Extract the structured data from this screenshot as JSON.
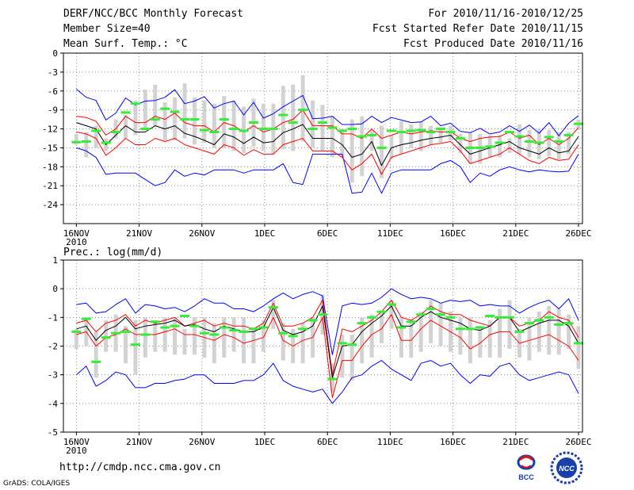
{
  "header": {
    "title": "DERF/NCC/BCC Monthly Forecast",
    "member_size": "Member Size=40",
    "variable": "Mean Surf. Temp.: °C",
    "period": "For 2010/11/16-2010/12/25",
    "start_date": "Fcst Started Refer Date 2010/11/15",
    "produced_date": "Fcst Produced Date 2010/11/16"
  },
  "footer": {
    "url": "http://cmdp.ncc.cma.gov.cn",
    "credit": "GrADS: COLA/IGES",
    "logo_bcc": "BCC",
    "logo_ncc": "NCC"
  },
  "colors": {
    "envelope": "#0000ff",
    "spread": "#ff0000",
    "mean": "#000000",
    "box": "#d2d2d2",
    "median": "#33ee33",
    "grid": "#888888"
  },
  "chart_data": [
    {
      "type": "box",
      "title": "Mean Surf. Temp.: °C",
      "x_tick_labels": [
        "16NOV",
        "21NOV",
        "26NOV",
        "1DEC",
        "6DEC",
        "11DEC",
        "16DEC",
        "21DEC",
        "26DEC"
      ],
      "x_year_label": "2010",
      "ylim": [
        -27,
        0
      ],
      "yticks": [
        0,
        -3,
        -6,
        -9,
        -12,
        -15,
        -18,
        -21,
        -24
      ],
      "series": [
        {
          "name": "max",
          "values": [
            -5.7,
            -7.0,
            -7.5,
            -10.6,
            -9.5,
            -7.1,
            -8.2,
            -7.6,
            -7.5,
            -7.0,
            -5.8,
            -8.0,
            -7.6,
            -6.9,
            -8.7,
            -8.0,
            -7.6,
            -9.8,
            -7.8,
            -10.3,
            -9.6,
            -8.5,
            -7.6,
            -6.7,
            -10.4,
            -10.3,
            -10.0,
            -11.3,
            -11.3,
            -11.2,
            -10.0,
            -11.0,
            -10.2,
            -10.6,
            -11.0,
            -10.9,
            -10.0,
            -11.5,
            -11.1,
            -12.4,
            -12.6,
            -11.9,
            -12.8,
            -12.5,
            -11.5,
            -12.4,
            -11.4,
            -12.7,
            -11.0,
            -13.1,
            -11.1,
            -9.9
          ]
        },
        {
          "name": "upper",
          "values": [
            -10.0,
            -10.2,
            -10.8,
            -13.0,
            -12.0,
            -10.0,
            -11.0,
            -11.0,
            -10.0,
            -10.5,
            -9.5,
            -11.0,
            -11.5,
            -11.5,
            -12.5,
            -11.0,
            -11.5,
            -12.5,
            -11.5,
            -12.5,
            -12.0,
            -11.0,
            -10.5,
            -9.0,
            -11.5,
            -11.5,
            -11.5,
            -12.8,
            -12.8,
            -13.5,
            -12.0,
            -13.5,
            -13.0,
            -12.5,
            -12.8,
            -12.5,
            -12.3,
            -12.5,
            -12.4,
            -13.5,
            -14.0,
            -13.5,
            -13.3,
            -13.2,
            -12.5,
            -13.5,
            -13.0,
            -14.5,
            -13.5,
            -14.5,
            -13.5,
            -11.8
          ]
        },
        {
          "name": "mean",
          "values": [
            -11.0,
            -11.5,
            -12.0,
            -14.5,
            -13.0,
            -11.5,
            -12.5,
            -12.5,
            -11.5,
            -12.0,
            -11.5,
            -12.7,
            -13.2,
            -13.8,
            -14.5,
            -12.8,
            -13.3,
            -14.3,
            -13.3,
            -14.2,
            -14.0,
            -12.6,
            -12.0,
            -11.3,
            -13.5,
            -13.5,
            -13.5,
            -14.5,
            -16.5,
            -16.0,
            -14.0,
            -17.8,
            -15.0,
            -14.5,
            -14.2,
            -13.8,
            -13.5,
            -13.3,
            -13.0,
            -14.5,
            -16.0,
            -15.5,
            -15.0,
            -14.5,
            -14.0,
            -15.0,
            -15.5,
            -16.0,
            -15.0,
            -15.8,
            -15.5,
            -13.2
          ]
        },
        {
          "name": "lower",
          "values": [
            -12.5,
            -12.8,
            -13.5,
            -16.2,
            -15.0,
            -13.5,
            -14.5,
            -14.5,
            -13.5,
            -14.0,
            -13.5,
            -14.5,
            -15.0,
            -15.5,
            -16.0,
            -14.5,
            -15.0,
            -16.2,
            -15.3,
            -16.0,
            -16.0,
            -14.5,
            -14.0,
            -13.5,
            -15.5,
            -15.5,
            -15.5,
            -16.5,
            -18.5,
            -17.5,
            -16.0,
            -19.2,
            -16.5,
            -16.0,
            -15.5,
            -15.0,
            -14.5,
            -14.3,
            -14.0,
            -15.5,
            -17.5,
            -17.0,
            -16.5,
            -16.0,
            -15.0,
            -16.0,
            -17.0,
            -17.5,
            -16.5,
            -17.0,
            -16.8,
            -14.5
          ]
        },
        {
          "name": "min",
          "values": [
            -15.0,
            -15.5,
            -16.5,
            -19.2,
            -19.0,
            -19.0,
            -19.0,
            -20.0,
            -21.0,
            -20.5,
            -18.5,
            -19.5,
            -19.0,
            -19.3,
            -18.5,
            -18.5,
            -18.5,
            -19.0,
            -18.5,
            -18.5,
            -18.5,
            -17.5,
            -20.5,
            -20.8,
            -16.0,
            -16.0,
            -16.0,
            -16.0,
            -22.2,
            -22.0,
            -19.0,
            -22.2,
            -19.0,
            -18.5,
            -18.5,
            -18.5,
            -18.5,
            -17.5,
            -17.0,
            -18.0,
            -20.5,
            -19.0,
            -19.5,
            -18.5,
            -18.0,
            -18.5,
            -18.8,
            -18.5,
            -18.7,
            -18.8,
            -18.7,
            -16.0
          ]
        },
        {
          "name": "box_top",
          "values": [
            -12.8,
            -12.5,
            -11.5,
            -13.5,
            -10.5,
            -9.8,
            -7.5,
            -5.8,
            -5.0,
            -7.8,
            -7.0,
            -4.8,
            -7.0,
            -7.5,
            -8.0,
            -6.8,
            -7.5,
            -8.5,
            -7.2,
            -8.0,
            -8.0,
            -5.2,
            -5.0,
            -3.5,
            -7.5,
            -8.2,
            -10.0,
            -12.0,
            -10.5,
            -10.0,
            -12.2,
            -11.5,
            -13.0,
            -10.8,
            -11.3,
            -10.8,
            -11.5,
            -11.8,
            -11.5,
            -12.8,
            -12.5,
            -12.8,
            -13.0,
            -13.0,
            -13.5,
            -11.3,
            -12.2,
            -12.0,
            -12.2,
            -12.5,
            -12.5,
            -10.5
          ]
        },
        {
          "name": "box_bottom",
          "values": [
            -14.5,
            -16.5,
            -15.0,
            -15.5,
            -13.5,
            -13.5,
            -13.0,
            -12.0,
            -11.5,
            -13.8,
            -13.8,
            -13.5,
            -14.5,
            -14.2,
            -15.0,
            -15.0,
            -15.5,
            -15.8,
            -14.8,
            -15.5,
            -16.0,
            -15.2,
            -15.5,
            -14.0,
            -15.0,
            -15.5,
            -16.5,
            -16.5,
            -20.5,
            -19.5,
            -15.5,
            -19.8,
            -16.8,
            -16.0,
            -15.0,
            -15.5,
            -14.5,
            -14.2,
            -13.8,
            -15.8,
            -17.5,
            -17.5,
            -16.5,
            -16.5,
            -15.8,
            -16.0,
            -16.5,
            -16.8,
            -16.3,
            -16.8,
            -16.0,
            -12.0
          ]
        },
        {
          "name": "median",
          "values": [
            -14.1,
            -14.0,
            -12.3,
            -14.2,
            -12.5,
            -9.4,
            -8.0,
            -12.0,
            -10.5,
            -8.8,
            -9.3,
            -10.5,
            -10.5,
            -12.2,
            -12.5,
            -10.5,
            -12.0,
            -12.3,
            -11.0,
            -12.0,
            -12.0,
            -9.8,
            -11.0,
            -9.0,
            -12.0,
            -11.0,
            -11.8,
            -12.3,
            -12.0,
            -13.2,
            -13.0,
            -15.0,
            -12.3,
            -12.5,
            -12.3,
            -12.2,
            -12.5,
            -12.0,
            -12.5,
            -13.5,
            -15.0,
            -15.0,
            -14.8,
            -14.2,
            -12.5,
            -13.2,
            -14.0,
            -14.2,
            -13.3,
            -14.0,
            -13.0,
            -11.2
          ]
        }
      ]
    },
    {
      "type": "box",
      "title": "Prec.: log(mm/d)",
      "x_tick_labels": [
        "16NOV",
        "21NOV",
        "26NOV",
        "1DEC",
        "6DEC",
        "11DEC",
        "16DEC",
        "21DEC",
        "26DEC"
      ],
      "x_year_label": "2010",
      "ylim": [
        -5,
        1
      ],
      "yticks": [
        1,
        0,
        -1,
        -2,
        -3,
        -4,
        -5
      ],
      "series": [
        {
          "name": "max",
          "values": [
            -0.55,
            -0.5,
            -0.85,
            -0.8,
            -0.55,
            -0.35,
            -0.85,
            -0.55,
            -0.6,
            -0.7,
            -0.65,
            -0.8,
            -0.6,
            -0.35,
            -0.5,
            -0.5,
            -0.7,
            -0.7,
            -0.8,
            -0.6,
            -0.35,
            -0.15,
            -0.35,
            -0.2,
            -0.1,
            -0.25,
            -2.3,
            -0.6,
            -0.5,
            -0.55,
            -0.5,
            -0.3,
            0.0,
            -0.2,
            -0.35,
            -0.3,
            -0.35,
            -0.5,
            -0.4,
            -0.45,
            -0.4,
            -0.6,
            -0.55,
            -0.6,
            -0.6,
            -0.85,
            -0.65,
            -0.5,
            -0.4,
            -0.7,
            -0.35,
            -1.1
          ]
        },
        {
          "name": "upper",
          "values": [
            -1.2,
            -1.1,
            -1.5,
            -1.2,
            -1.1,
            -0.9,
            -1.3,
            -1.1,
            -1.2,
            -1.1,
            -1.0,
            -1.3,
            -1.2,
            -1.1,
            -1.3,
            -1.2,
            -1.3,
            -1.3,
            -1.4,
            -1.2,
            -0.5,
            -1.3,
            -1.3,
            -1.2,
            -1.0,
            -0.4,
            -3.0,
            -1.4,
            -1.5,
            -1.3,
            -1.1,
            -0.8,
            -0.4,
            -1.0,
            -1.1,
            -0.9,
            -0.6,
            -0.8,
            -0.9,
            -0.9,
            -1.1,
            -1.2,
            -1.3,
            -1.0,
            -1.0,
            -1.3,
            -1.2,
            -1.1,
            -0.8,
            -1.0,
            -1.1,
            -1.7
          ]
        },
        {
          "name": "mean",
          "values": [
            -1.4,
            -1.3,
            -1.8,
            -1.45,
            -1.3,
            -1.0,
            -1.4,
            -1.3,
            -1.25,
            -1.2,
            -1.1,
            -1.3,
            -1.25,
            -1.4,
            -1.5,
            -1.3,
            -1.4,
            -1.5,
            -1.5,
            -1.35,
            -0.65,
            -1.45,
            -1.6,
            -1.5,
            -1.3,
            -0.6,
            -3.1,
            -2.0,
            -1.95,
            -1.5,
            -1.2,
            -0.95,
            -0.6,
            -1.3,
            -1.3,
            -1.0,
            -0.8,
            -1.0,
            -1.1,
            -1.2,
            -1.4,
            -1.45,
            -1.3,
            -1.0,
            -1.0,
            -1.5,
            -1.35,
            -1.2,
            -1.1,
            -1.1,
            -1.3,
            -1.9
          ]
        },
        {
          "name": "lower",
          "values": [
            -1.6,
            -1.5,
            -2.0,
            -1.7,
            -1.6,
            -1.4,
            -1.6,
            -1.6,
            -1.6,
            -1.5,
            -1.4,
            -1.6,
            -1.6,
            -1.7,
            -1.8,
            -1.6,
            -1.7,
            -1.9,
            -1.8,
            -1.7,
            -1.0,
            -1.8,
            -2.0,
            -1.8,
            -1.7,
            -1.0,
            -3.8,
            -2.5,
            -2.5,
            -2.0,
            -1.6,
            -1.4,
            -0.9,
            -1.8,
            -1.8,
            -1.4,
            -1.1,
            -1.3,
            -1.5,
            -1.7,
            -2.1,
            -1.9,
            -1.6,
            -1.5,
            -1.5,
            -1.9,
            -1.8,
            -1.7,
            -1.6,
            -1.8,
            -2.0,
            -2.5
          ]
        },
        {
          "name": "min",
          "values": [
            -3.0,
            -2.7,
            -3.4,
            -3.2,
            -2.9,
            -3.0,
            -3.45,
            -3.45,
            -3.3,
            -3.3,
            -3.2,
            -3.15,
            -3.0,
            -3.0,
            -3.3,
            -3.3,
            -3.3,
            -3.2,
            -3.2,
            -3.0,
            -2.6,
            -3.2,
            -3.4,
            -3.5,
            -3.6,
            -3.5,
            -4.0,
            -3.6,
            -3.1,
            -3.0,
            -2.7,
            -2.5,
            -2.8,
            -3.0,
            -3.2,
            -2.6,
            -2.5,
            -2.7,
            -2.6,
            -3.0,
            -3.3,
            -3.0,
            -3.05,
            -2.7,
            -2.6,
            -3.0,
            -3.2,
            -3.1,
            -3.0,
            -2.9,
            -3.0,
            -3.65
          ]
        },
        {
          "name": "box_top",
          "values": [
            -1.4,
            -1.0,
            -1.5,
            -1.1,
            -0.9,
            -1.3,
            -1.1,
            -1.0,
            -1.1,
            -1.0,
            -1.0,
            -1.4,
            -1.0,
            -1.0,
            -1.2,
            -1.0,
            -1.0,
            -1.0,
            -1.4,
            -1.1,
            -0.4,
            -1.2,
            -1.4,
            -1.2,
            -1.0,
            -0.2,
            -2.6,
            -1.6,
            -1.6,
            -1.0,
            -0.9,
            -0.8,
            -0.4,
            -1.0,
            -1.1,
            -0.8,
            -0.4,
            -0.5,
            -0.8,
            -1.0,
            -1.0,
            -1.3,
            -1.1,
            -0.7,
            -0.4,
            -1.4,
            -1.0,
            -0.8,
            -0.6,
            -0.7,
            -0.9,
            -1.3
          ]
        },
        {
          "name": "box_bottom",
          "values": [
            -2.1,
            -2.0,
            -3.1,
            -2.2,
            -2.2,
            -2.6,
            -3.0,
            -2.4,
            -2.2,
            -2.2,
            -2.3,
            -2.3,
            -2.3,
            -2.4,
            -2.6,
            -2.4,
            -2.2,
            -2.6,
            -2.6,
            -2.2,
            -1.4,
            -2.5,
            -2.6,
            -2.6,
            -2.4,
            -1.6,
            -3.6,
            -3.1,
            -3.2,
            -2.6,
            -2.4,
            -1.9,
            -1.4,
            -2.4,
            -2.4,
            -2.2,
            -1.9,
            -2.0,
            -2.2,
            -2.3,
            -2.6,
            -2.4,
            -2.4,
            -2.4,
            -2.1,
            -2.4,
            -2.5,
            -2.2,
            -2.3,
            -2.3,
            -2.1,
            -2.8
          ]
        },
        {
          "name": "median",
          "values": [
            -1.5,
            -1.05,
            -2.55,
            -1.7,
            -1.55,
            -1.5,
            -1.95,
            -1.6,
            -1.15,
            -1.35,
            -1.3,
            -0.95,
            -1.3,
            -1.55,
            -1.6,
            -1.35,
            -1.45,
            -1.5,
            -1.4,
            -1.35,
            -0.65,
            -1.55,
            -1.65,
            -1.4,
            -1.1,
            -0.9,
            -3.15,
            -1.9,
            -1.95,
            -1.2,
            -1.0,
            -0.8,
            -0.55,
            -1.35,
            -1.15,
            -0.9,
            -0.7,
            -0.9,
            -1.0,
            -1.4,
            -1.4,
            -1.35,
            -0.95,
            -1.0,
            -1.0,
            -1.5,
            -1.2,
            -1.1,
            -1.0,
            -1.25,
            -1.2,
            -1.9
          ]
        }
      ]
    }
  ]
}
